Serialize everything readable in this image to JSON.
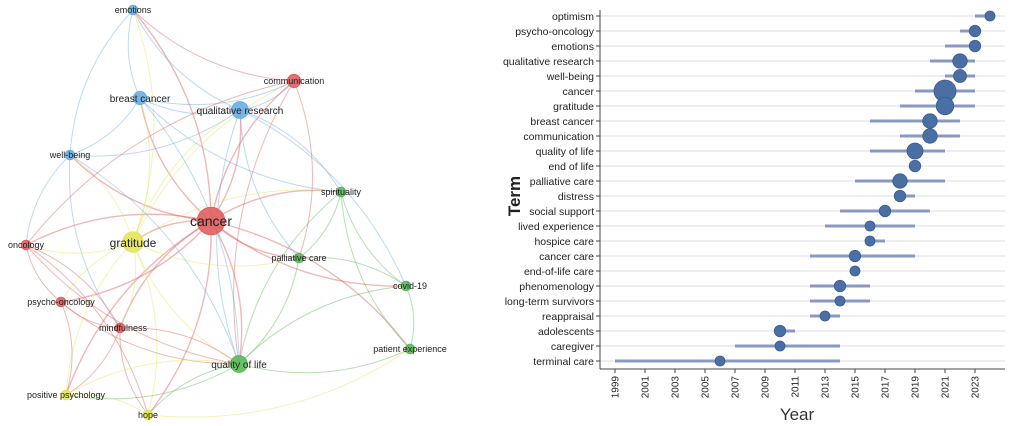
{
  "chart_data": [
    {
      "type": "network",
      "title": "",
      "cluster_colors": {
        "red": "#e06060",
        "blue": "#6aaee0",
        "green": "#5cb85c",
        "yellow": "#e4e45a"
      },
      "nodes": [
        {
          "id": "emotions",
          "label": "emotions",
          "cluster": "blue",
          "weight": 1
        },
        {
          "id": "breast cancer",
          "label": "breast cancer",
          "cluster": "blue",
          "weight": 2
        },
        {
          "id": "qualitative research",
          "label": "qualitative research",
          "cluster": "blue",
          "weight": 3
        },
        {
          "id": "well-being",
          "label": "well-being",
          "cluster": "blue",
          "weight": 1
        },
        {
          "id": "communication",
          "label": "communication",
          "cluster": "red",
          "weight": 2
        },
        {
          "id": "cancer",
          "label": "cancer",
          "cluster": "red",
          "weight": 6
        },
        {
          "id": "oncology",
          "label": "oncology",
          "cluster": "red",
          "weight": 1
        },
        {
          "id": "psycho-oncology",
          "label": "psycho-oncology",
          "cluster": "red",
          "weight": 1
        },
        {
          "id": "mindfulness",
          "label": "mindfulness",
          "cluster": "red",
          "weight": 1
        },
        {
          "id": "gratitude",
          "label": "gratitude",
          "cluster": "yellow",
          "weight": 4
        },
        {
          "id": "positive psychology",
          "label": "positive psychology",
          "cluster": "yellow",
          "weight": 1
        },
        {
          "id": "hope",
          "label": "hope",
          "cluster": "yellow",
          "weight": 1
        },
        {
          "id": "spirituality",
          "label": "spirituality",
          "cluster": "green",
          "weight": 1
        },
        {
          "id": "palliative care",
          "label": "palliative care",
          "cluster": "green",
          "weight": 1
        },
        {
          "id": "covid-19",
          "label": "covid-19",
          "cluster": "green",
          "weight": 1
        },
        {
          "id": "patient experience",
          "label": "patient experience",
          "cluster": "green",
          "weight": 1
        },
        {
          "id": "quality of life",
          "label": "quality of life",
          "cluster": "green",
          "weight": 3
        }
      ],
      "edges": [
        [
          "cancer",
          "gratitude"
        ],
        [
          "cancer",
          "breast cancer"
        ],
        [
          "cancer",
          "qualitative research"
        ],
        [
          "cancer",
          "communication"
        ],
        [
          "cancer",
          "oncology"
        ],
        [
          "cancer",
          "psycho-oncology"
        ],
        [
          "cancer",
          "mindfulness"
        ],
        [
          "cancer",
          "quality of life"
        ],
        [
          "cancer",
          "palliative care"
        ],
        [
          "cancer",
          "spirituality"
        ],
        [
          "cancer",
          "covid-19"
        ],
        [
          "cancer",
          "well-being"
        ],
        [
          "cancer",
          "emotions"
        ],
        [
          "cancer",
          "hope"
        ],
        [
          "cancer",
          "positive psychology"
        ],
        [
          "cancer",
          "patient experience"
        ],
        [
          "gratitude",
          "breast cancer"
        ],
        [
          "gratitude",
          "qualitative research"
        ],
        [
          "gratitude",
          "well-being"
        ],
        [
          "gratitude",
          "oncology"
        ],
        [
          "gratitude",
          "psycho-oncology"
        ],
        [
          "gratitude",
          "mindfulness"
        ],
        [
          "gratitude",
          "quality of life"
        ],
        [
          "gratitude",
          "hope"
        ],
        [
          "gratitude",
          "positive psychology"
        ],
        [
          "gratitude",
          "spirituality"
        ],
        [
          "gratitude",
          "palliative care"
        ],
        [
          "gratitude",
          "communication"
        ],
        [
          "gratitude",
          "emotions"
        ],
        [
          "breast cancer",
          "emotions"
        ],
        [
          "breast cancer",
          "qualitative research"
        ],
        [
          "breast cancer",
          "well-being"
        ],
        [
          "breast cancer",
          "communication"
        ],
        [
          "breast cancer",
          "quality of life"
        ],
        [
          "breast cancer",
          "spirituality"
        ],
        [
          "qualitative research",
          "emotions"
        ],
        [
          "qualitative research",
          "communication"
        ],
        [
          "qualitative research",
          "spirituality"
        ],
        [
          "qualitative research",
          "palliative care"
        ],
        [
          "qualitative research",
          "covid-19"
        ],
        [
          "qualitative research",
          "quality of life"
        ],
        [
          "qualitative research",
          "well-being"
        ],
        [
          "well-being",
          "oncology"
        ],
        [
          "well-being",
          "emotions"
        ],
        [
          "well-being",
          "mindfulness"
        ],
        [
          "well-being",
          "quality of life"
        ],
        [
          "communication",
          "oncology"
        ],
        [
          "communication",
          "palliative care"
        ],
        [
          "communication",
          "quality of life"
        ],
        [
          "communication",
          "emotions"
        ],
        [
          "oncology",
          "psycho-oncology"
        ],
        [
          "oncology",
          "mindfulness"
        ],
        [
          "oncology",
          "quality of life"
        ],
        [
          "oncology",
          "hope"
        ],
        [
          "psycho-oncology",
          "mindfulness"
        ],
        [
          "psycho-oncology",
          "positive psychology"
        ],
        [
          "psycho-oncology",
          "quality of life"
        ],
        [
          "mindfulness",
          "positive psychology"
        ],
        [
          "mindfulness",
          "hope"
        ],
        [
          "mindfulness",
          "quality of life"
        ],
        [
          "quality of life",
          "palliative care"
        ],
        [
          "quality of life",
          "spirituality"
        ],
        [
          "quality of life",
          "hope"
        ],
        [
          "quality of life",
          "positive psychology"
        ],
        [
          "quality of life",
          "patient experience"
        ],
        [
          "quality of life",
          "covid-19"
        ],
        [
          "palliative care",
          "spirituality"
        ],
        [
          "palliative care",
          "covid-19"
        ],
        [
          "spirituality",
          "covid-19"
        ],
        [
          "covid-19",
          "patient experience"
        ],
        [
          "spirituality",
          "patient experience"
        ],
        [
          "positive psychology",
          "hope"
        ],
        [
          "hope",
          "patient experience"
        ],
        [
          "positive psychology",
          "quality of life"
        ]
      ]
    },
    {
      "type": "scatter",
      "title": "",
      "xlabel": "Year",
      "ylabel": "Term",
      "xlim": [
        1998,
        2025
      ],
      "xticks": [
        "1999",
        "2001",
        "2003",
        "2005",
        "2007",
        "2009",
        "2011",
        "2013",
        "2015",
        "2017",
        "2019",
        "2021",
        "2023"
      ],
      "marker_color": "#4a6fa5",
      "range_color": "#8899c4",
      "terms": [
        {
          "term": "optimism",
          "q1": 2023,
          "median": 2024,
          "q3": 2024,
          "freq": 2
        },
        {
          "term": "psycho-oncology",
          "q1": 2022,
          "median": 2023,
          "q3": 2023,
          "freq": 3
        },
        {
          "term": "emotions",
          "q1": 2021,
          "median": 2023,
          "q3": 2023,
          "freq": 3
        },
        {
          "term": "qualitative research",
          "q1": 2020,
          "median": 2022,
          "q3": 2023,
          "freq": 5
        },
        {
          "term": "well-being",
          "q1": 2021,
          "median": 2022,
          "q3": 2023,
          "freq": 4
        },
        {
          "term": "cancer",
          "q1": 2019,
          "median": 2021,
          "q3": 2023,
          "freq": 10
        },
        {
          "term": "gratitude",
          "q1": 2018,
          "median": 2021,
          "q3": 2023,
          "freq": 7
        },
        {
          "term": "breast cancer",
          "q1": 2016,
          "median": 2020,
          "q3": 2022,
          "freq": 5
        },
        {
          "term": "communication",
          "q1": 2018,
          "median": 2020,
          "q3": 2022,
          "freq": 5
        },
        {
          "term": "quality of life",
          "q1": 2016,
          "median": 2019,
          "q3": 2021,
          "freq": 6
        },
        {
          "term": "end of life",
          "q1": 2019,
          "median": 2019,
          "q3": 2019,
          "freq": 3
        },
        {
          "term": "palliative care",
          "q1": 2015,
          "median": 2018,
          "q3": 2021,
          "freq": 5
        },
        {
          "term": "distress",
          "q1": 2018,
          "median": 2018,
          "q3": 2019,
          "freq": 3
        },
        {
          "term": "social support",
          "q1": 2014,
          "median": 2017,
          "q3": 2020,
          "freq": 3
        },
        {
          "term": "lived experience",
          "q1": 2013,
          "median": 2016,
          "q3": 2019,
          "freq": 2
        },
        {
          "term": "hospice care",
          "q1": 2016,
          "median": 2016,
          "q3": 2017,
          "freq": 2
        },
        {
          "term": "cancer care",
          "q1": 2012,
          "median": 2015,
          "q3": 2019,
          "freq": 3
        },
        {
          "term": "end-of-life care",
          "q1": 2015,
          "median": 2015,
          "q3": 2015,
          "freq": 2
        },
        {
          "term": "phenomenology",
          "q1": 2012,
          "median": 2014,
          "q3": 2016,
          "freq": 3
        },
        {
          "term": "long-term survivors",
          "q1": 2012,
          "median": 2014,
          "q3": 2016,
          "freq": 2
        },
        {
          "term": "reappraisal",
          "q1": 2012,
          "median": 2013,
          "q3": 2014,
          "freq": 2
        },
        {
          "term": "adolescents",
          "q1": 2010,
          "median": 2010,
          "q3": 2011,
          "freq": 3
        },
        {
          "term": "caregiver",
          "q1": 2007,
          "median": 2010,
          "q3": 2014,
          "freq": 2
        },
        {
          "term": "terminal care",
          "q1": 1999,
          "median": 2006,
          "q3": 2014,
          "freq": 2
        }
      ]
    }
  ]
}
